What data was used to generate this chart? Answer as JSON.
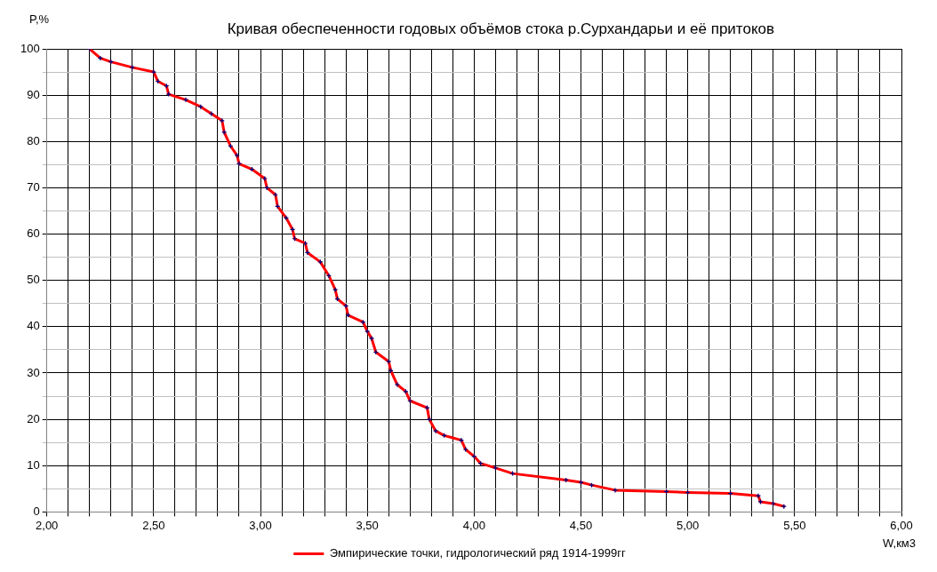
{
  "chart_data": {
    "type": "line",
    "title": "Кривая обеспеченности годовых объёмов стока р.Сурхандарьи и её притоков",
    "xlabel": "W,км3",
    "ylabel": "P,%",
    "series": [
      {
        "name": "Эмпирические точки, гидрологический ряд 1914-1999гг",
        "color": "#ff0000",
        "x": [
          2.2,
          2.25,
          2.3,
          2.4,
          2.5,
          2.52,
          2.56,
          2.57,
          2.65,
          2.72,
          2.77,
          2.82,
          2.83,
          2.86,
          2.89,
          2.9,
          2.96,
          3.02,
          3.03,
          3.07,
          3.08,
          3.12,
          3.15,
          3.16,
          3.21,
          3.22,
          3.28,
          3.32,
          3.35,
          3.36,
          3.4,
          3.41,
          3.48,
          3.5,
          3.52,
          3.54,
          3.6,
          3.61,
          3.64,
          3.68,
          3.7,
          3.78,
          3.79,
          3.82,
          3.86,
          3.94,
          3.96,
          4.0,
          4.03,
          4.1,
          4.18,
          4.43,
          4.5,
          4.55,
          4.66,
          4.9,
          5.0,
          5.2,
          5.33,
          5.34,
          5.4,
          5.45
        ],
        "values": [
          100,
          98,
          97.2,
          96,
          95,
          93,
          92,
          90.2,
          89,
          87.5,
          86,
          84.5,
          82,
          79,
          77,
          75.2,
          74,
          72,
          70,
          68.5,
          66,
          63.5,
          61,
          59,
          58,
          56,
          54,
          51,
          48,
          46,
          44.5,
          42.5,
          41,
          39,
          37.5,
          34.5,
          32.5,
          30.5,
          27.5,
          26,
          24,
          22.5,
          20,
          17.5,
          16.5,
          15.5,
          13.5,
          12,
          10.5,
          9.5,
          8.3,
          6.9,
          6.4,
          5.8,
          4.7,
          4.4,
          4.2,
          4,
          3.5,
          2.2,
          1.8,
          1.2
        ]
      }
    ],
    "xlim": [
      2,
      6
    ],
    "xticks": [
      {
        "value": 2,
        "label": "2,00"
      },
      {
        "value": 2.1,
        "label": null
      },
      {
        "value": 2.2,
        "label": null
      },
      {
        "value": 2.3,
        "label": null
      },
      {
        "value": 2.4,
        "label": null
      },
      {
        "value": 2.5,
        "label": "2,50"
      },
      {
        "value": 2.6,
        "label": null
      },
      {
        "value": 2.7,
        "label": null
      },
      {
        "value": 2.8,
        "label": null
      },
      {
        "value": 2.9,
        "label": null
      },
      {
        "value": 3,
        "label": "3,00"
      },
      {
        "value": 3.1,
        "label": null
      },
      {
        "value": 3.2,
        "label": null
      },
      {
        "value": 3.3,
        "label": null
      },
      {
        "value": 3.4,
        "label": null
      },
      {
        "value": 3.5,
        "label": "3,50"
      },
      {
        "value": 3.6,
        "label": null
      },
      {
        "value": 3.7,
        "label": null
      },
      {
        "value": 3.8,
        "label": null
      },
      {
        "value": 3.9,
        "label": null
      },
      {
        "value": 4,
        "label": "4,00"
      },
      {
        "value": 4.1,
        "label": null
      },
      {
        "value": 4.2,
        "label": null
      },
      {
        "value": 4.3,
        "label": null
      },
      {
        "value": 4.4,
        "label": null
      },
      {
        "value": 4.5,
        "label": "4,50"
      },
      {
        "value": 4.6,
        "label": null
      },
      {
        "value": 4.7,
        "label": null
      },
      {
        "value": 4.8,
        "label": null
      },
      {
        "value": 4.9,
        "label": null
      },
      {
        "value": 5,
        "label": "5,00"
      },
      {
        "value": 5.1,
        "label": null
      },
      {
        "value": 5.2,
        "label": null
      },
      {
        "value": 5.3,
        "label": null
      },
      {
        "value": 5.4,
        "label": null
      },
      {
        "value": 5.5,
        "label": "5,50"
      },
      {
        "value": 5.6,
        "label": null
      },
      {
        "value": 5.7,
        "label": null
      },
      {
        "value": 5.8,
        "label": null
      },
      {
        "value": 5.9,
        "label": null
      },
      {
        "value": 6,
        "label": "6,00"
      }
    ],
    "ylim": [
      0,
      100
    ],
    "yticks": [
      0,
      {
        "value": 5,
        "label": null
      },
      10,
      {
        "value": 15,
        "label": null
      },
      20,
      {
        "value": 25,
        "label": null
      },
      30,
      {
        "value": 35,
        "label": null
      },
      40,
      {
        "value": 45,
        "label": null
      },
      50,
      {
        "value": 55,
        "label": null
      },
      60,
      {
        "value": 65,
        "label": null
      },
      70,
      {
        "value": 75,
        "label": null
      },
      80,
      {
        "value": 85,
        "label": null
      },
      90,
      {
        "value": 95,
        "label": null
      },
      100
    ],
    "grid": true,
    "legend": "bottom",
    "marker": "cross",
    "line_style": "solid"
  }
}
